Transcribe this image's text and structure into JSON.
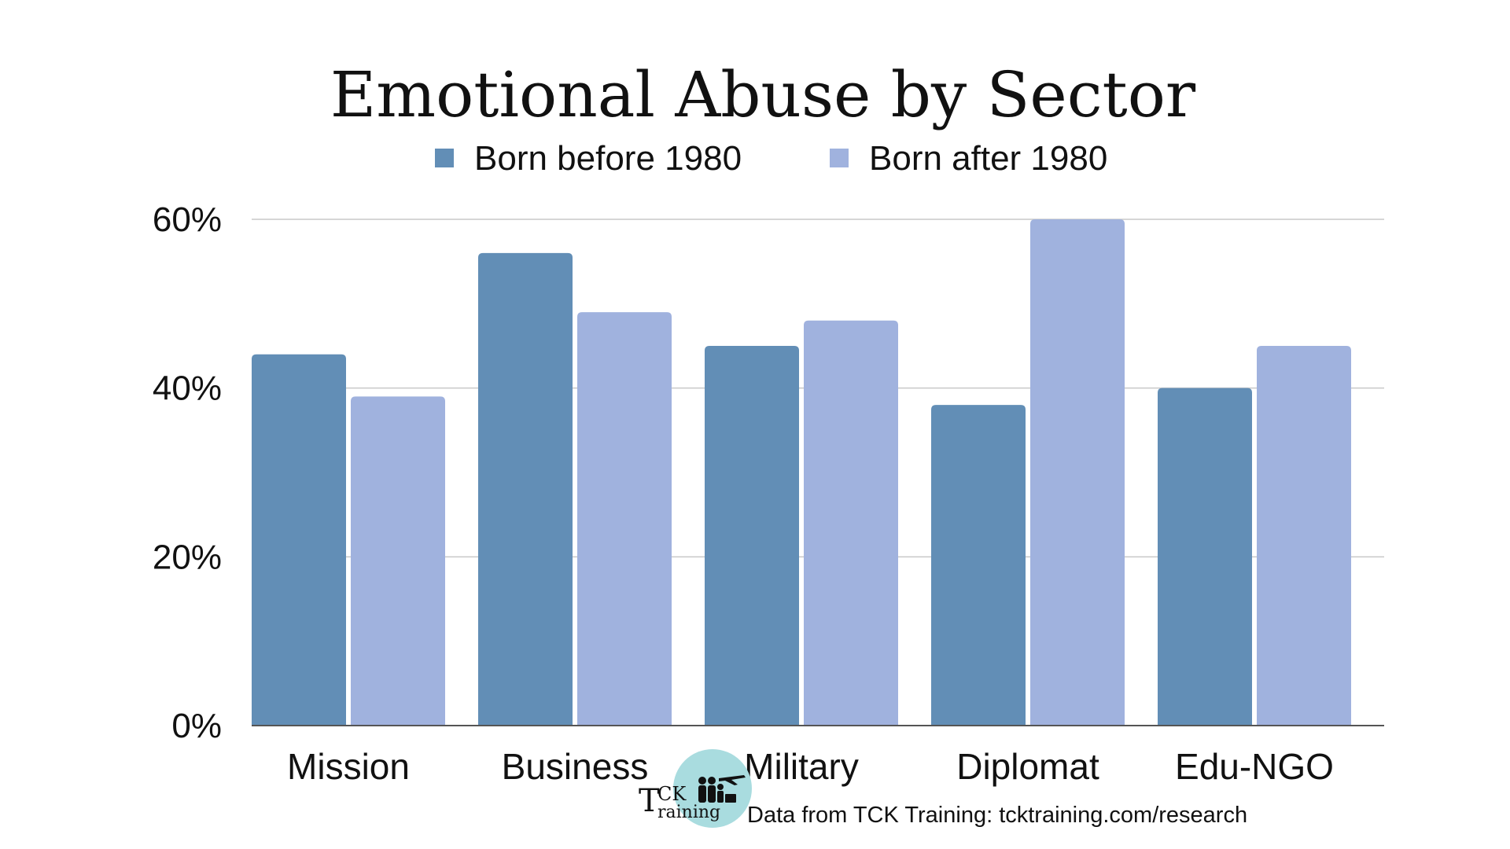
{
  "chart_data": {
    "type": "bar",
    "title": "Emotional Abuse by Sector",
    "categories": [
      "Mission",
      "Business",
      "Military",
      "Diplomat",
      "Edu-NGO"
    ],
    "series": [
      {
        "name": "Born before 1980",
        "values": [
          44,
          56,
          45,
          38,
          40
        ],
        "color": "#628eb6"
      },
      {
        "name": "Born after 1980",
        "values": [
          39,
          49,
          48,
          60,
          45
        ],
        "color": "#a0b2de"
      }
    ],
    "y_ticks": [
      "0%",
      "20%",
      "40%",
      "60%"
    ],
    "ylim": [
      0,
      60
    ],
    "grid": true,
    "legend_position": "top"
  },
  "source": "Data from TCK Training: tcktraining.com/research",
  "logo": {
    "line1": "CK",
    "line2": "raining",
    "initial": "T"
  },
  "colors": {
    "grid": "#c8c8c8",
    "axis": "#555555",
    "logo_circle": "#a9dcdf"
  }
}
